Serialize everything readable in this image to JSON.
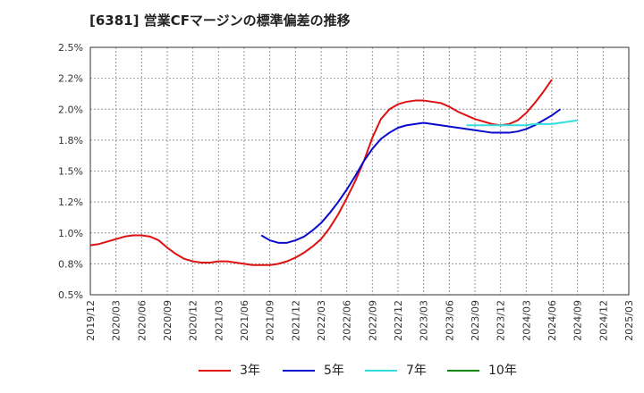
{
  "title": "[6381]  営業CFマージンの標準偏差の推移",
  "chart_data": {
    "type": "line",
    "title": "[6381]  営業CFマージンの標準偏差の推移",
    "xlabel": "",
    "ylabel": "",
    "ylim": [
      0.5,
      2.5
    ],
    "y_ticks": [
      "0.5%",
      "0.8%",
      "1.0%",
      "1.2%",
      "1.5%",
      "1.8%",
      "2.0%",
      "2.2%",
      "2.5%"
    ],
    "y_tick_values": [
      0.5,
      0.75,
      1.0,
      1.25,
      1.5,
      1.75,
      2.0,
      2.25,
      2.5
    ],
    "x_ticks": [
      "2019/12",
      "2020/03",
      "2020/06",
      "2020/09",
      "2020/12",
      "2021/03",
      "2021/06",
      "2021/09",
      "2021/12",
      "2022/03",
      "2022/06",
      "2022/09",
      "2022/12",
      "2023/03",
      "2023/06",
      "2023/09",
      "2023/12",
      "2024/03",
      "2024/06",
      "2024/09",
      "2024/12",
      "2025/03"
    ],
    "grid": true,
    "legend_position": "bottom",
    "series": [
      {
        "name": "3年",
        "color": "#dd1111",
        "start": "2019/12",
        "values": [
          0.9,
          0.91,
          0.93,
          0.95,
          0.97,
          0.98,
          0.98,
          0.97,
          0.94,
          0.88,
          0.83,
          0.79,
          0.77,
          0.76,
          0.76,
          0.77,
          0.77,
          0.76,
          0.75,
          0.74,
          0.74,
          0.74,
          0.75,
          0.77,
          0.8,
          0.84,
          0.89,
          0.95,
          1.04,
          1.15,
          1.28,
          1.42,
          1.58,
          1.77,
          1.92,
          2.0,
          2.04,
          2.06,
          2.07,
          2.07,
          2.06,
          2.05,
          2.02,
          1.98,
          1.95,
          1.92,
          1.9,
          1.88,
          1.87,
          1.88,
          1.91,
          1.97,
          2.05,
          2.14,
          2.24
        ]
      },
      {
        "name": "5年",
        "color": "#0a0acc",
        "start": "2021/08",
        "values": [
          0.98,
          0.94,
          0.92,
          0.92,
          0.94,
          0.97,
          1.02,
          1.08,
          1.16,
          1.25,
          1.35,
          1.46,
          1.58,
          1.68,
          1.76,
          1.81,
          1.85,
          1.87,
          1.88,
          1.89,
          1.88,
          1.87,
          1.86,
          1.85,
          1.84,
          1.83,
          1.82,
          1.81,
          1.81,
          1.81,
          1.82,
          1.84,
          1.87,
          1.91,
          1.95,
          2.0
        ]
      },
      {
        "name": "7年",
        "color": "#33dddd",
        "start": "2023/08",
        "values": [
          1.87,
          1.87,
          1.87,
          1.87,
          1.87,
          1.87,
          1.87,
          1.87,
          1.88,
          1.88,
          1.88,
          1.89,
          1.9,
          1.91
        ]
      },
      {
        "name": "10年",
        "color": "#118811",
        "start": "2024/09",
        "values": []
      }
    ]
  }
}
